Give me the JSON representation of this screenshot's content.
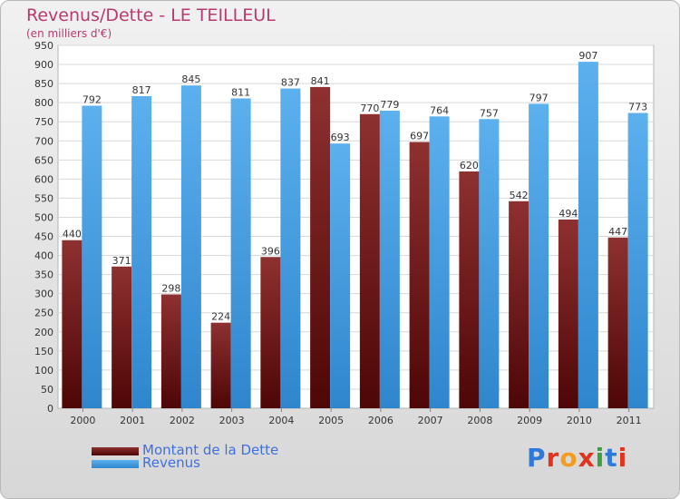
{
  "chart_data": {
    "type": "bar",
    "title": "Revenus/Dette - LE TEILLEUL",
    "subtitle": "(en milliers d'€)",
    "categories": [
      "2000",
      "2001",
      "2002",
      "2003",
      "2004",
      "2005",
      "2006",
      "2007",
      "2008",
      "2009",
      "2010",
      "2011"
    ],
    "series": [
      {
        "name": "Montant de la Dette",
        "color": "#7a1a1a",
        "values": [
          440,
          371,
          298,
          224,
          396,
          841,
          770,
          697,
          620,
          542,
          494,
          447
        ]
      },
      {
        "name": "Revenus",
        "color": "#4aa3e8",
        "values": [
          792,
          817,
          845,
          811,
          837,
          693,
          779,
          764,
          757,
          797,
          907,
          773
        ]
      }
    ],
    "ylim": [
      0,
      950
    ],
    "ytick_step": 50,
    "grid": true,
    "legend_position": "bottom-left"
  },
  "logo": {
    "text": "Proxiti"
  }
}
